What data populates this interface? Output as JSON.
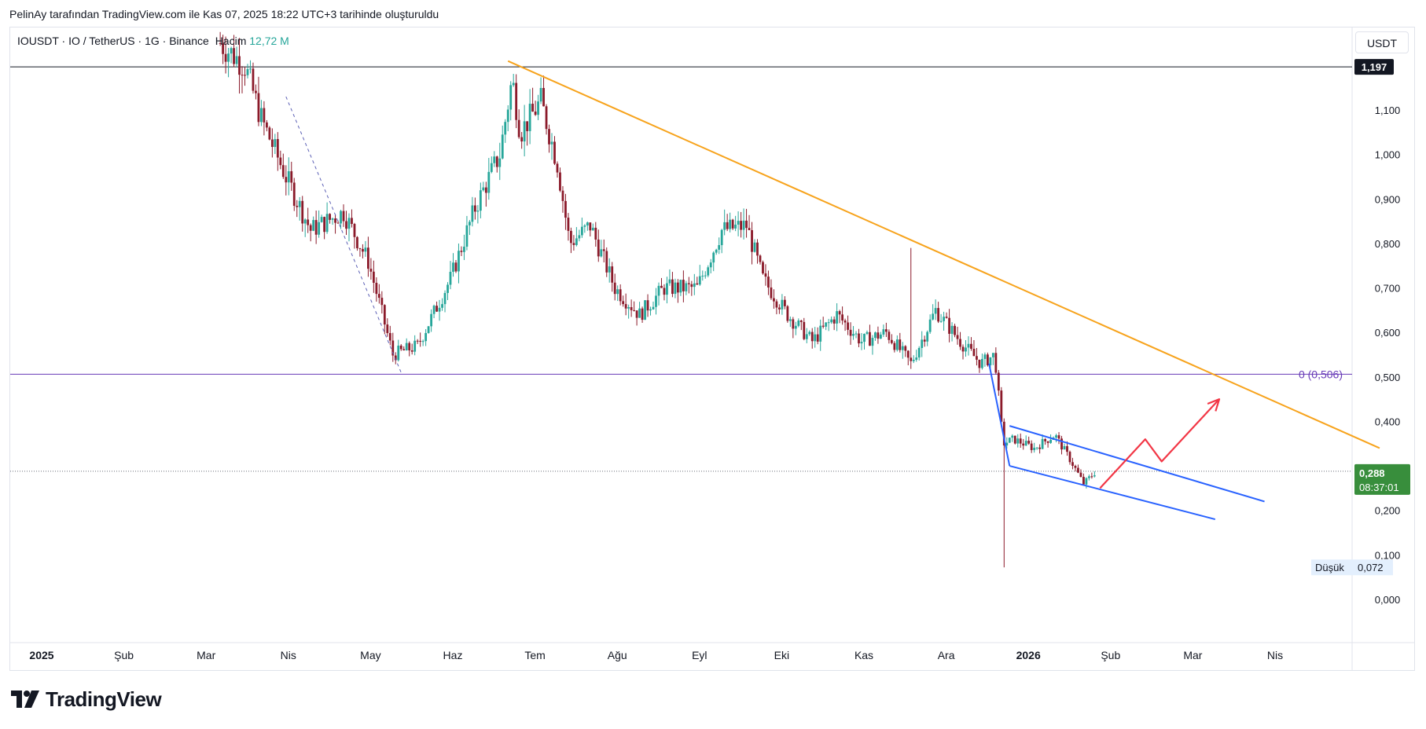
{
  "caption": "PelinAy tarafından TradingView.com ile Kas 07, 2025 18:22 UTC+3 tarihinde oluşturuldu",
  "header": {
    "symbol": "IOUSDT · IO / TetherUS · 1G · Binance",
    "volume_label": "Hacim",
    "volume_value": "12,72 M"
  },
  "currency_button": "USDT",
  "logo_text": "TradingView",
  "colors": {
    "up": "#26a69a",
    "down": "#8b1a2a",
    "trendline": "#f7a31c",
    "channel": "#2962ff",
    "arrow": "#f23645",
    "fib": "#673ab7",
    "price_tag": "#388e3c"
  },
  "chart_data": {
    "type": "candlestick",
    "symbol": "IOUSDT",
    "timeframe": "1G",
    "ylim": [
      -0.1,
      1.29
    ],
    "y_ticks": [
      "0,000",
      "0,100",
      "0,200",
      "0,400",
      "0,500",
      "0,600",
      "0,700",
      "0,800",
      "0,900",
      "1,000",
      "1,100"
    ],
    "x_labels": [
      "2025",
      "Şub",
      "Mar",
      "Nis",
      "May",
      "Haz",
      "Tem",
      "Ağu",
      "Eyl",
      "Eki",
      "Kas",
      "Ara",
      "2026",
      "Şub",
      "Mar",
      "Nis"
    ],
    "last_price": {
      "value": "0,288",
      "countdown": "08:37:01"
    },
    "high_line": {
      "value": "1,197"
    },
    "fib_level": {
      "label": "0 (0,506)",
      "value": 0.506
    },
    "low_marker": {
      "label": "Düşük",
      "value": "0,072"
    },
    "price_path": [
      [
        2.2,
        1.25
      ],
      [
        2.5,
        1.2
      ],
      [
        2.7,
        1.08
      ],
      [
        3.0,
        0.95
      ],
      [
        3.3,
        0.83
      ],
      [
        3.7,
        0.87
      ],
      [
        4.0,
        0.76
      ],
      [
        4.3,
        0.55
      ],
      [
        4.6,
        0.57
      ],
      [
        5.0,
        0.72
      ],
      [
        5.3,
        0.88
      ],
      [
        5.6,
        1.0
      ],
      [
        5.75,
        1.17
      ],
      [
        5.85,
        1.05
      ],
      [
        6.1,
        1.12
      ],
      [
        6.3,
        0.98
      ],
      [
        6.45,
        0.8
      ],
      [
        6.7,
        0.84
      ],
      [
        7.0,
        0.7
      ],
      [
        7.3,
        0.64
      ],
      [
        7.6,
        0.7
      ],
      [
        8.0,
        0.7
      ],
      [
        8.3,
        0.83
      ],
      [
        8.6,
        0.84
      ],
      [
        8.8,
        0.72
      ],
      [
        9.1,
        0.64
      ],
      [
        9.4,
        0.58
      ],
      [
        9.7,
        0.64
      ],
      [
        10.0,
        0.58
      ],
      [
        10.3,
        0.6
      ],
      [
        10.6,
        0.53
      ],
      [
        10.9,
        0.65
      ],
      [
        11.2,
        0.58
      ],
      [
        11.45,
        0.53
      ],
      [
        11.62,
        0.55
      ],
      [
        11.72,
        0.35
      ],
      [
        11.85,
        0.36
      ],
      [
        12.1,
        0.34
      ],
      [
        12.35,
        0.37
      ],
      [
        12.55,
        0.31
      ],
      [
        12.7,
        0.26
      ],
      [
        12.85,
        0.288
      ]
    ],
    "wicks": [
      {
        "x": 10.6,
        "high": 0.79
      },
      {
        "x": 11.72,
        "low": 0.072
      }
    ],
    "drawings": {
      "trendline": [
        [
          5.7,
          1.21
        ],
        [
          16.3,
          0.34
        ]
      ],
      "dashed_line": [
        [
          3.0,
          1.13
        ],
        [
          4.4,
          0.51
        ]
      ],
      "channel_upper": [
        [
          11.8,
          0.39
        ],
        [
          14.9,
          0.22
        ]
      ],
      "channel_lower": [
        [
          11.8,
          0.3
        ],
        [
          14.3,
          0.18
        ]
      ],
      "entry_line": [
        [
          11.55,
          0.53
        ],
        [
          11.8,
          0.3
        ]
      ],
      "projection_arrow": [
        [
          12.9,
          0.25
        ],
        [
          13.45,
          0.36
        ],
        [
          13.65,
          0.31
        ],
        [
          14.35,
          0.45
        ]
      ]
    }
  }
}
